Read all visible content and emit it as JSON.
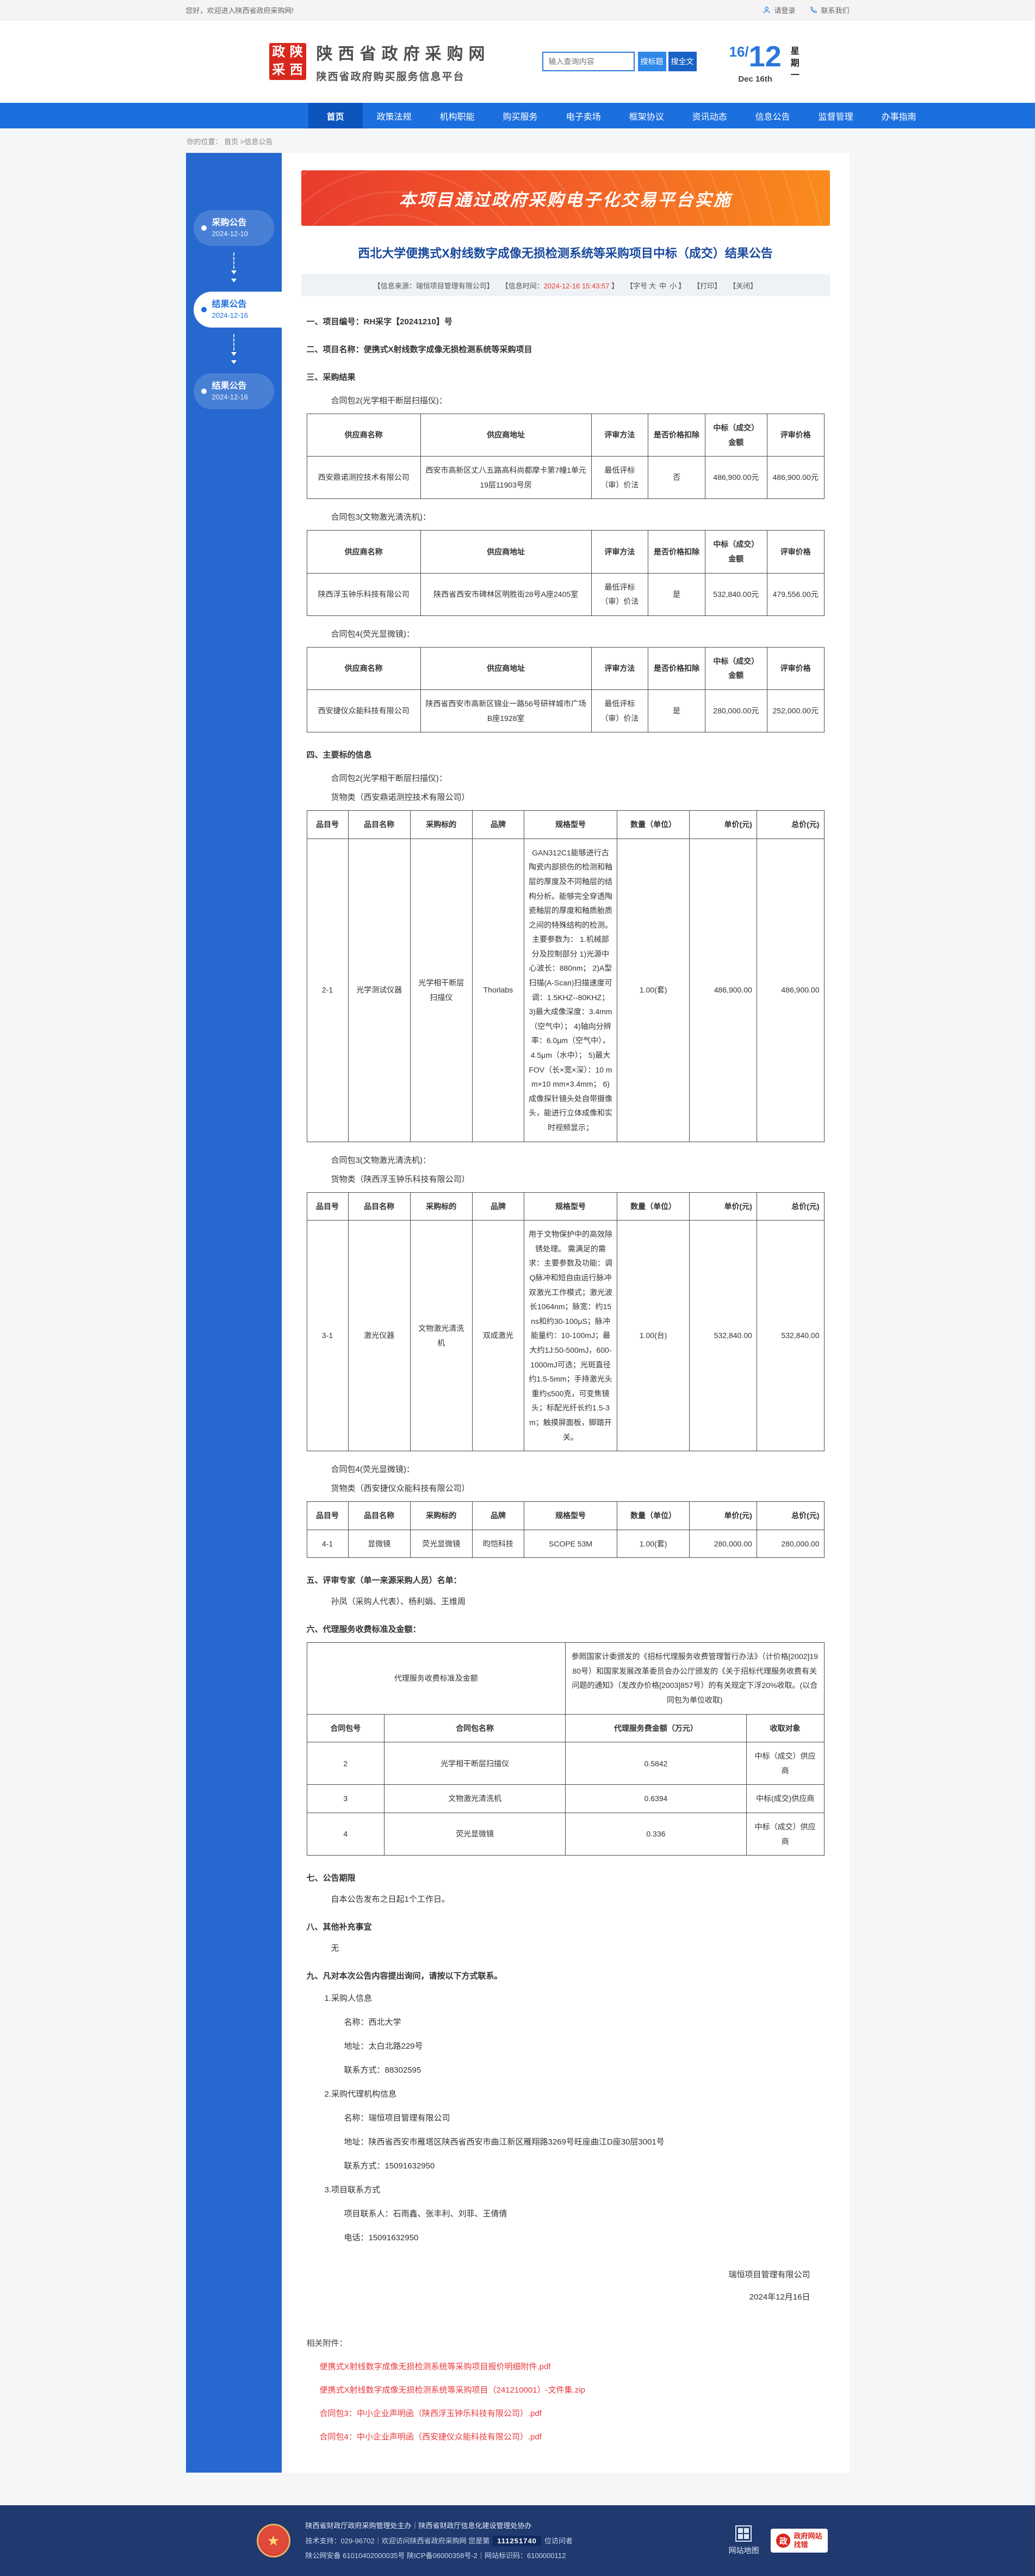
{
  "top_bar": {
    "welcome": "您好，欢迎进入陕西省政府采购网!",
    "login": "请登录",
    "contact": "联系我们"
  },
  "header": {
    "seal_chars": [
      "政",
      "陕",
      "采",
      "西"
    ],
    "site_name": "陕西省政府采购网",
    "site_subtitle": "陕西省政府购买服务信息平台",
    "search_placeholder": "输入查询内容",
    "search_title_btn": "搜标题",
    "search_fulltext_btn": "搜全文",
    "date_day": "16/",
    "date_month": "12",
    "weekday": "星期一",
    "date_en": "Dec 16th"
  },
  "nav": {
    "items": [
      "首页",
      "政策法规",
      "机构职能",
      "购买服务",
      "电子卖场",
      "框架协议",
      "资讯动态",
      "信息公告",
      "监督管理",
      "办事指南"
    ],
    "active_index": 0
  },
  "breadcrumb": {
    "label": "你的位置：",
    "home": "首页",
    "sep": ">",
    "current": "信息公告"
  },
  "sidebar": {
    "items": [
      {
        "title": "采购公告",
        "date": "2024-12-10",
        "active": false
      },
      {
        "title": "结果公告",
        "date": "2024-12-16",
        "active": true
      },
      {
        "title": "结果公告",
        "date": "2024-12-16",
        "active": false
      }
    ]
  },
  "banner": {
    "text": "本项目通过政府采购电子化交易平台实施"
  },
  "article": {
    "title": "西北大学便携式X射线数字成像无损检测系统等采购项目中标（成交）结果公告",
    "meta": {
      "source": "【信息来源：瑞恒项目管理有限公司】",
      "time_prefix": "【信息时间：",
      "time": "2024-12-16 15:43:57",
      "time_suffix": "】",
      "size_prefix": "【字号",
      "size_options": [
        "大",
        "中",
        "小"
      ],
      "size_suffix": "】",
      "print": "【打印】",
      "close": "【关闭】"
    },
    "sections": {
      "s1_heading": "一、项目编号：RH采字【20241210】号",
      "s2_heading": "二、项目名称：便携式X射线数字成像无损检测系统等采购项目",
      "s3_heading": "三、采购结果",
      "s4_heading": "四、主要标的信息",
      "s5_heading": "五、评审专家（单一来源采购人员）名单：",
      "s5_body": "孙凤（采购人代表）、杨利娟、王维周",
      "s6_heading": "六、代理服务收费标准及金额：",
      "s7_heading": "七、公告期限",
      "s7_body": "自本公告发布之日起1个工作日。",
      "s8_heading": "八、其他补充事宜",
      "s8_body": "无",
      "s9_heading": "九、凡对本次公告内容提出询问，请按以下方式联系。"
    },
    "result_headers": [
      "供应商名称",
      "供应商地址",
      "评审方法",
      "是否价格扣除",
      "中标（成交）金额",
      "评审价格"
    ],
    "result_tables": [
      {
        "package_label": "合同包2(光学相干断层扫描仪)：",
        "rows": [
          [
            "西安鼎诺测控技术有限公司",
            "西安市高新区丈八五路高科尚都摩卡第7幢1单元19层11903号房",
            "最低评标（审）价法",
            "否",
            "486,900.00元",
            "486,900.00元"
          ]
        ]
      },
      {
        "package_label": "合同包3(文物激光清洗机)：",
        "rows": [
          [
            "陕西浮玉钟乐科技有限公司",
            "陕西省西安市碑林区明胜街28号A座2405室",
            "最低评标（审）价法",
            "是",
            "532,840.00元",
            "479,556.00元"
          ]
        ]
      },
      {
        "package_label": "合同包4(荧光显微镜)：",
        "rows": [
          [
            "西安捷仪众能科技有限公司",
            "陕西省西安市高新区锦业一路56号研祥城市广场B座1928室",
            "最低评标（审）价法",
            "是",
            "280,000.00元",
            "252,000.00元"
          ]
        ]
      }
    ],
    "bid_headers": [
      "品目号",
      "品目名称",
      "采购标的",
      "品牌",
      "规格型号",
      "数量（单位）",
      "单价(元)",
      "总价(元)"
    ],
    "bid_tables": [
      {
        "package_label": "合同包2(光学相干断层扫描仪)：",
        "type_line": "货物类（西安鼎诺测控技术有限公司）",
        "rows": [
          [
            "2-1",
            "光学测试仪器",
            "光学相干断层扫描仪",
            "Thorlabs",
            "GAN312C1能够进行古陶瓷内部损伤的检测和釉层的厚度及不同釉层的结构分析。能够完全穿透陶瓷釉层的厚度和釉质胎质之间的特殊结构的检测。主要参数为： 1.机械部分及控制部分 1)光源中心波长：880nm； 2)A型扫描(A-Scan)扫描速度可调：1.5KHZ--80KHZ； 3)最大成像深度：3.4mm（空气中）； 4)轴向分辨率：6.0μm（空气中），4.5μm（水中）； 5)最大FOV（长×宽×深）：10 mm×10 mm×3.4mm； 6)成像探针镜头处自带摄像头，能进行立体成像和实时视频显示；",
            "1.00(套)",
            "486,900.00",
            "486,900.00"
          ]
        ]
      },
      {
        "package_label": "合同包3(文物激光清洗机)：",
        "type_line": "货物类（陕西浮玉钟乐科技有限公司）",
        "rows": [
          [
            "3-1",
            "激光仪器",
            "文物激光清洗机",
            "双成激光",
            "用于文物保护中的高效除锈处理。 需满足的需求：主要参数及功能：调Q脉冲和短自由运行脉冲双激光工作模式；激光波长1064nm；脉宽：约15ns和约30-100μS；脉冲能量约：10-100mJ；最大约1J:50-500mJ，600-1000mJ可选；光斑直径约1.5-5mm；手持激光头重约≤500克，可变焦镜头；标配光纤长约1.5-3m；触摸屏面板，脚踏开关。",
            "1.00(台)",
            "532,840.00",
            "532,840.00"
          ]
        ]
      },
      {
        "package_label": "合同包4(荧光显微镜)：",
        "type_line": "货物类（西安捷仪众能科技有限公司）",
        "rows": [
          [
            "4-1",
            "显微镜",
            "荧光显微镜",
            "昀恺科技",
            "SCOPE 53M",
            "1.00(套)",
            "280,000.00",
            "280,000.00"
          ]
        ]
      }
    ],
    "fee_table": {
      "label": "代理服务收费标准及金额",
      "description": "参照国家计委颁发的《招标代理服务收费管理暂行办法》（计价格[2002]1980号）和国家发展改革委员会办公厅颁发的《关于招标代理服务收费有关问题的通知》（发改办价格[2003]857号）的有关规定下浮20%收取。(以合同包为单位收取)",
      "headers": [
        "合同包号",
        "合同包名称",
        "代理服务费金额（万元）",
        "收取对象"
      ],
      "rows": [
        [
          "2",
          "光学相干断层扫描仪",
          "0.5842",
          "中标（成交）供应商"
        ],
        [
          "3",
          "文物激光清洗机",
          "0.6394",
          "中标(成交)供应商"
        ],
        [
          "4",
          "荧光显微镜",
          "0.336",
          "中标（成交）供应商"
        ]
      ]
    },
    "contacts": [
      {
        "text": "1.采购人信息",
        "indent": 1
      },
      {
        "text": "名称：西北大学",
        "indent": 2
      },
      {
        "text": "地址：太白北路229号",
        "indent": 2
      },
      {
        "text": "联系方式：88302595",
        "indent": 2
      },
      {
        "text": "2.采购代理机构信息",
        "indent": 1
      },
      {
        "text": "名称：瑞恒项目管理有限公司",
        "indent": 2
      },
      {
        "text": "地址：陕西省西安市雁塔区陕西省西安市曲江新区雁翔路3269号旺座曲江D座30层3001号",
        "indent": 2
      },
      {
        "text": "联系方式：15091632950",
        "indent": 2
      },
      {
        "text": "3.项目联系方式",
        "indent": 1
      },
      {
        "text": "项目联系人：石雨鑫、张丰利、刘菲、王倩倩",
        "indent": 2
      },
      {
        "text": "电话：15091632950",
        "indent": 2
      }
    ],
    "signature": {
      "company": "瑞恒项目管理有限公司",
      "date": "2024年12月16日"
    },
    "attachments": {
      "label": "相关附件：",
      "files": [
        "便携式X射线数字成像无损检测系统等采购项目报价明细附件.pdf",
        "便携式X射线数字成像无损检测系统等采购项目（241210001）-文件集.zip",
        "合同包3：中小企业声明函（陕西浮玉钟乐科技有限公司）.pdf",
        "合同包4：中小企业声明函（西安捷仪众能科技有限公司）.pdf"
      ]
    }
  },
  "footer": {
    "line1": "陕西省财政厅政府采购管理处主办｜陕西省财政厅信息化建设管理处协办",
    "line2_prefix": "技术支持：029-96702｜欢迎访问陕西省政府采购网 您是第",
    "visitor_count": "111251740",
    "line2_suffix": "位访问者",
    "line3": "陕公网安备 61010402000035号 陕ICP备06000358号-2｜网站标识码：6100000112",
    "sitemap": "网站地图",
    "err_badge_icon": "政",
    "err_badge_line1": "政府网站",
    "err_badge_line2": "找错"
  },
  "colors": {
    "nav_blue": "#1c6fdf",
    "nav_active": "#0d55bd",
    "banner_red": "#e93b2d",
    "banner_orange": "#fa8d1c",
    "title_blue": "#17489c",
    "time_red": "#f0392b",
    "attachment_red": "#e8383d",
    "footer_navy": "#20396e"
  }
}
